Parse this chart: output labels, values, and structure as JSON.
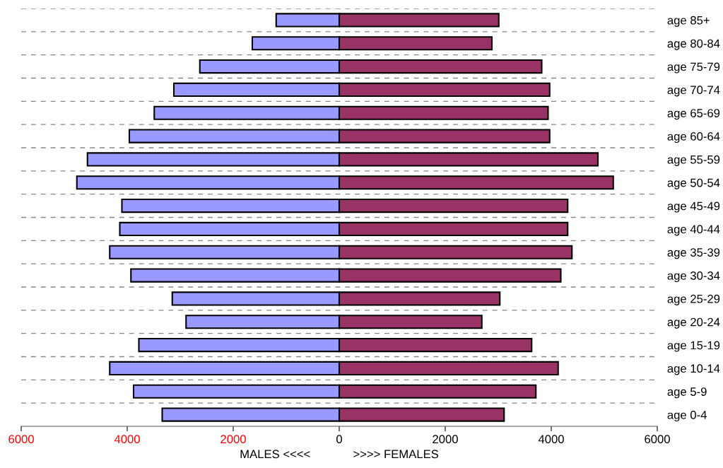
{
  "chart_data": {
    "type": "bar",
    "orientation": "horizontal",
    "stacked": true,
    "xlabel": "MALES <<<<             >>>> FEMALES",
    "categories": [
      "age 85+",
      "age 80-84",
      "age 75-79",
      "age 70-74",
      "age 65-69",
      "age 60-64",
      "age 55-59",
      "age 50-54",
      "age 45-49",
      "age 40-44",
      "age 35-39",
      "age 30-34",
      "age 25-29",
      "age 20-24",
      "age 15-19",
      "age 10-14",
      "age 5-9",
      "age 0-4"
    ],
    "series": [
      {
        "color": "#9999ff",
        "values": [
          -1190,
          -1640,
          -2630,
          -3120,
          -3490,
          -3960,
          -4750,
          -4950,
          -4100,
          -4140,
          -4330,
          -3930,
          -3150,
          -2890,
          -3780,
          -4330,
          -3880,
          -3340
        ]
      },
      {
        "color": "#993366",
        "values": [
          3010,
          2880,
          3820,
          3970,
          3940,
          3970,
          4880,
          5170,
          4310,
          4310,
          4390,
          4180,
          3030,
          2690,
          3630,
          4130,
          3710,
          3110
        ]
      }
    ],
    "xlim": [
      -6000,
      6000
    ],
    "xticks": [
      {
        "value": -6000,
        "label": "6000"
      },
      {
        "value": -4000,
        "label": "4000"
      },
      {
        "value": -2000,
        "label": "2000"
      },
      0,
      2000,
      4000,
      6000
    ],
    "grid": "y"
  }
}
